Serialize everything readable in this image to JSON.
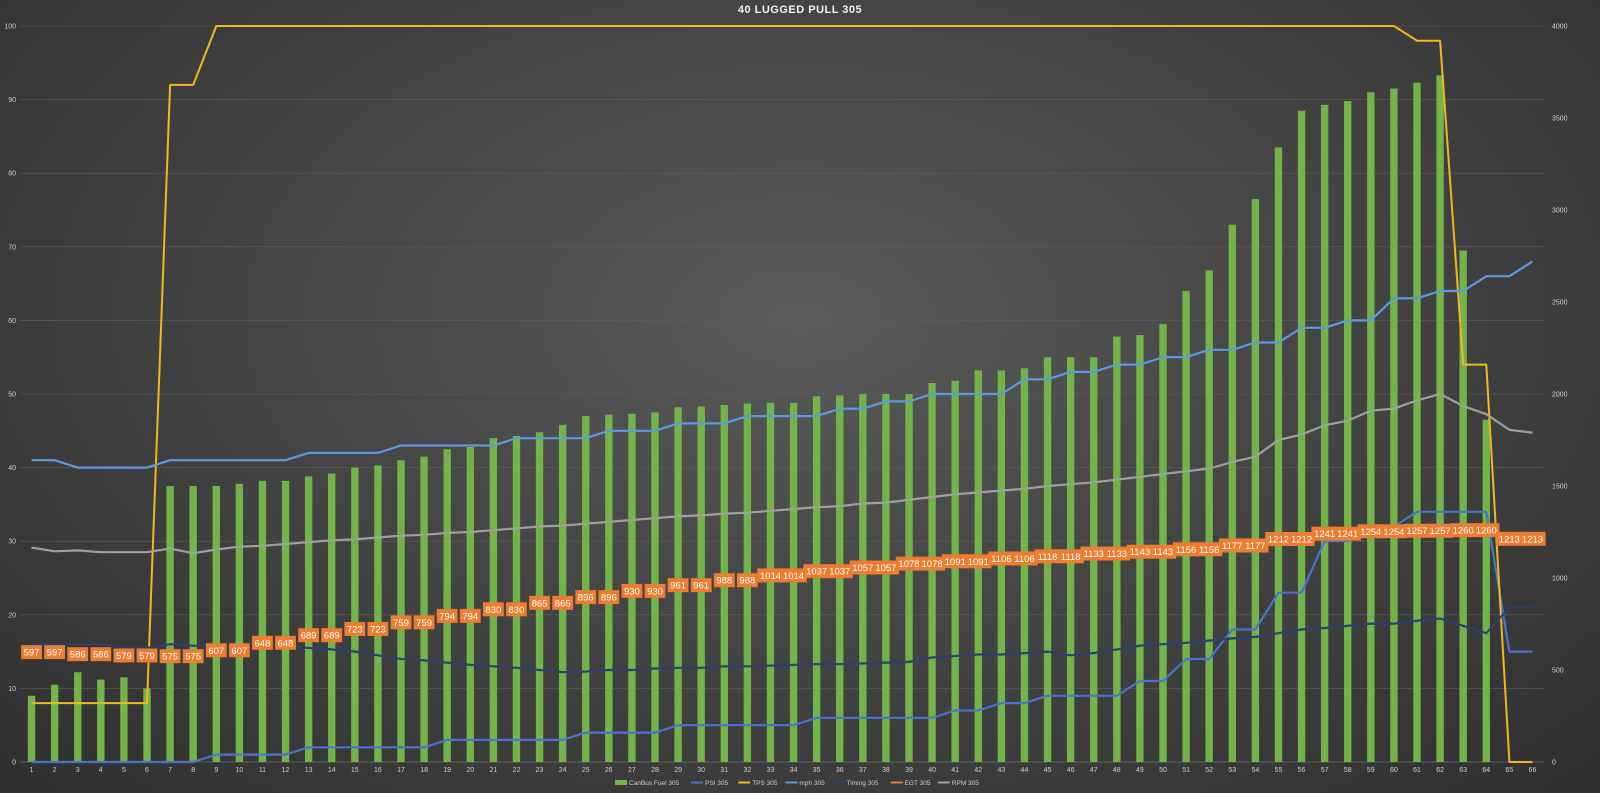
{
  "chart_data": {
    "type": "bar",
    "title": "40 LUGGED PULL 305",
    "x": [
      1,
      2,
      3,
      4,
      5,
      6,
      7,
      8,
      9,
      10,
      11,
      12,
      13,
      14,
      15,
      16,
      17,
      18,
      19,
      20,
      21,
      22,
      23,
      24,
      25,
      26,
      27,
      28,
      29,
      30,
      31,
      32,
      33,
      34,
      35,
      36,
      37,
      38,
      39,
      40,
      41,
      42,
      43,
      44,
      45,
      46,
      47,
      48,
      49,
      50,
      51,
      52,
      53,
      54,
      55,
      56,
      57,
      58,
      59,
      60,
      61,
      62,
      63,
      64,
      65,
      66
    ],
    "y_left_ticks": [
      0,
      10,
      20,
      30,
      40,
      50,
      60,
      70,
      80,
      90,
      100
    ],
    "y_right_ticks": [
      0,
      500,
      1000,
      1500,
      2000,
      2500,
      3000,
      3500,
      4000
    ],
    "ylim_left": [
      0,
      100
    ],
    "ylim_right": [
      0,
      4000
    ],
    "grid": true,
    "legend_position": "bottom",
    "series": [
      {
        "name": "CanBus Fuel 305",
        "type": "bar",
        "axis": "left",
        "color": "#72b34a",
        "values": [
          9,
          10.5,
          12.2,
          11.2,
          11.5,
          10,
          37.5,
          37.5,
          37.5,
          37.8,
          38.2,
          38.2,
          38.8,
          39.2,
          40,
          40.3,
          41,
          41.5,
          42.5,
          42.8,
          44,
          44.3,
          44.8,
          45.8,
          47,
          47.2,
          47.3,
          47.5,
          48.2,
          48.3,
          48.5,
          48.7,
          48.8,
          48.8,
          49.7,
          49.8,
          50,
          50,
          50,
          51.5,
          51.8,
          53.2,
          53.2,
          53.5,
          55,
          55,
          55,
          57.8,
          58,
          59.5,
          64,
          66.8,
          73,
          76.5,
          83.5,
          88.5,
          89.3,
          89.8,
          91,
          91.5,
          92.3,
          93.3,
          69.5,
          46.5,
          0,
          0
        ]
      },
      {
        "name": "PSI 305",
        "type": "line",
        "axis": "left",
        "color": "#4a74c9",
        "values": [
          0,
          0,
          0,
          0,
          0,
          0,
          0,
          0,
          1,
          1,
          1,
          1,
          2,
          2,
          2,
          2,
          2,
          2,
          3,
          3,
          3,
          3,
          3,
          3,
          4,
          4,
          4,
          4,
          5,
          5,
          5,
          5,
          5,
          5,
          6,
          6,
          6,
          6,
          6,
          6,
          7,
          7,
          8,
          8,
          9,
          9,
          9,
          9,
          11,
          11,
          14,
          14,
          18,
          18,
          23,
          23,
          30,
          30,
          32,
          32,
          34,
          34,
          34,
          34,
          15,
          15
        ]
      },
      {
        "name": "TPS 305",
        "type": "line",
        "axis": "left",
        "color": "#f2b81c",
        "values": [
          8,
          8,
          8,
          8,
          8,
          8,
          92,
          92,
          100,
          100,
          100,
          100,
          100,
          100,
          100,
          100,
          100,
          100,
          100,
          100,
          100,
          100,
          100,
          100,
          100,
          100,
          100,
          100,
          100,
          100,
          100,
          100,
          100,
          100,
          100,
          100,
          100,
          100,
          100,
          100,
          100,
          100,
          100,
          100,
          100,
          100,
          100,
          100,
          100,
          100,
          100,
          100,
          100,
          100,
          100,
          100,
          100,
          100,
          100,
          100,
          98,
          98,
          54,
          54,
          0,
          0
        ]
      },
      {
        "name": "mph 305",
        "type": "line",
        "axis": "left",
        "color": "#5b9be0",
        "values": [
          41,
          41,
          40,
          40,
          40,
          40,
          41,
          41,
          41,
          41,
          41,
          41,
          42,
          42,
          42,
          42,
          43,
          43,
          43,
          43,
          43,
          44,
          44,
          44,
          44,
          45,
          45,
          45,
          46,
          46,
          46,
          47,
          47,
          47,
          47,
          48,
          48,
          49,
          49,
          50,
          50,
          50,
          50,
          52,
          52,
          53,
          53,
          54,
          54,
          55,
          55,
          56,
          56,
          57,
          57,
          59,
          59,
          60,
          60,
          63,
          63,
          64,
          64,
          66,
          66,
          68
        ]
      },
      {
        "name": "Timing 305",
        "type": "line",
        "axis": "left",
        "color": "#2c3f6e",
        "values": [
          16,
          16,
          16,
          16,
          15.5,
          15.5,
          16,
          15.8,
          15.8,
          15.6,
          15.6,
          15.6,
          15.5,
          15.3,
          15,
          14.5,
          14,
          13.8,
          13.5,
          13.2,
          13,
          12.8,
          12.5,
          12.2,
          12.3,
          12.5,
          12.5,
          12.7,
          12.8,
          12.8,
          13,
          13,
          13.1,
          13.2,
          13.3,
          13.3,
          13.4,
          13.5,
          13.6,
          14.2,
          14.4,
          14.6,
          14.6,
          14.8,
          15,
          14.5,
          14.8,
          15.3,
          15.8,
          16,
          16.2,
          16.5,
          16.8,
          17,
          17.5,
          18,
          18.2,
          18.5,
          18.8,
          18.8,
          19.2,
          19.5,
          18.5,
          17.5,
          21,
          21
        ]
      },
      {
        "name": "EGT 305",
        "type": "line",
        "axis": "right",
        "color": "#ec7d31",
        "values": [
          597,
          597,
          586,
          586,
          579,
          579,
          575,
          575,
          607,
          607,
          648,
          648,
          689,
          689,
          723,
          723,
          759,
          759,
          794,
          794,
          830,
          830,
          865,
          865,
          896,
          896,
          930,
          930,
          961,
          961,
          988,
          988,
          1014,
          1014,
          1037,
          1037,
          1057,
          1057,
          1078,
          1078,
          1091,
          1091,
          1106,
          1106,
          1118,
          1118,
          1133,
          1133,
          1143,
          1143,
          1156,
          1156,
          1177,
          1177,
          1212,
          1212,
          1241,
          1241,
          1254,
          1254,
          1257,
          1257,
          1260,
          1260,
          1213,
          1213
        ]
      },
      {
        "name": "RPM 305",
        "type": "line",
        "axis": "right",
        "color": "#a0a0a0",
        "values": [
          1165,
          1145,
          1150,
          1140,
          1140,
          1140,
          1160,
          1135,
          1155,
          1170,
          1175,
          1185,
          1195,
          1205,
          1210,
          1220,
          1230,
          1235,
          1245,
          1250,
          1260,
          1270,
          1280,
          1285,
          1295,
          1305,
          1315,
          1325,
          1335,
          1340,
          1350,
          1355,
          1365,
          1375,
          1385,
          1390,
          1405,
          1410,
          1425,
          1440,
          1455,
          1465,
          1475,
          1485,
          1500,
          1510,
          1520,
          1535,
          1550,
          1565,
          1580,
          1595,
          1630,
          1660,
          1750,
          1780,
          1830,
          1855,
          1910,
          1920,
          1965,
          2000,
          1935,
          1890,
          1805,
          1790
        ]
      }
    ]
  }
}
